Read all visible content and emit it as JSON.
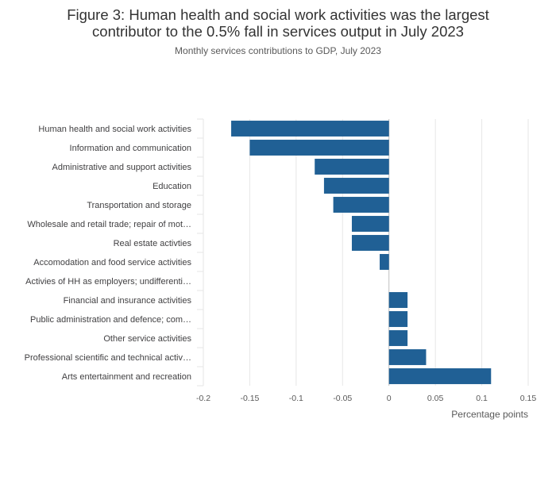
{
  "header": {
    "title_line1": "Figure 3: Human health and social work activities was the largest",
    "title_line2": "contributor to the 0.5% fall in services output in July 2023",
    "subtitle": "Monthly services contributions to GDP, July 2023"
  },
  "colors": {
    "bar": "#206095",
    "grid": "#e6e6e6",
    "axis": "#bfbfbf"
  },
  "chart_data": {
    "type": "bar",
    "orientation": "horizontal",
    "title": "Figure 3: Human health and social work activities was the largest contributor to the 0.5% fall in services output in July 2023",
    "subtitle": "Monthly services contributions to GDP, July 2023",
    "xlabel": "Percentage points",
    "ylabel": "",
    "xlim": [
      -0.2,
      0.15
    ],
    "xticks": [
      -0.2,
      -0.15,
      -0.1,
      -0.05,
      0,
      0.05,
      0.1,
      0.15
    ],
    "xtick_labels": [
      "-0.2",
      "-0.15",
      "-0.1",
      "-0.05",
      "0",
      "0.05",
      "0.1",
      "0.15"
    ],
    "grid": true,
    "categories": [
      "Human health and social work activities",
      "Information and communication",
      "Administrative and support activities",
      "Education",
      "Transportation and storage",
      "Wholesale and retail trade; repair of mot…",
      "Real estate activties",
      "Accomodation and food service activities",
      "Activies of HH as employers; undifferenti…",
      "Financial and insurance activities",
      "Public administration and defence; com…",
      "Other service activities",
      "Professional scientific and technical activ…",
      "Arts entertainment and recreation"
    ],
    "values": [
      -0.17,
      -0.15,
      -0.08,
      -0.07,
      -0.06,
      -0.04,
      -0.04,
      -0.01,
      0,
      0.02,
      0.02,
      0.02,
      0.04,
      0.11
    ]
  }
}
